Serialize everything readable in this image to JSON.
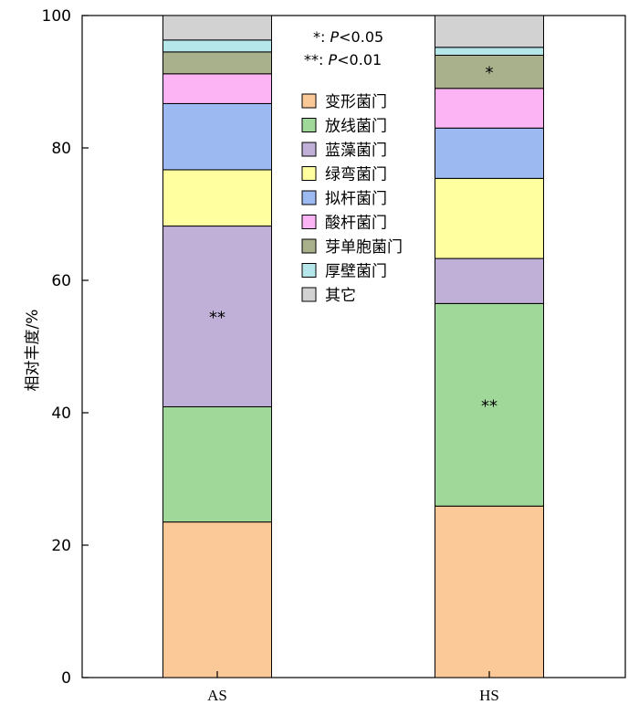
{
  "chart_data": {
    "type": "bar",
    "stacked": true,
    "categories": [
      "AS",
      "HS"
    ],
    "ylabel": "相对丰度/%",
    "ylim": [
      0,
      100
    ],
    "yticks": [
      0,
      20,
      40,
      60,
      80,
      100
    ],
    "legend_position": "top-center",
    "series": [
      {
        "name": "变形菌门",
        "color": "#FBC897",
        "values": [
          23.5,
          25.9
        ]
      },
      {
        "name": "放线菌门",
        "color": "#A0D89A",
        "values": [
          17.4,
          30.6
        ]
      },
      {
        "name": "蓝藻菌门",
        "color": "#C0AFD6",
        "values": [
          27.3,
          6.8
        ]
      },
      {
        "name": "绿弯菌门",
        "color": "#FFFFA0",
        "values": [
          8.5,
          12.1
        ]
      },
      {
        "name": "拟杆菌门",
        "color": "#9DB9F2",
        "values": [
          10.0,
          7.6
        ]
      },
      {
        "name": "酸杆菌门",
        "color": "#FCB4F4",
        "values": [
          4.5,
          6.0
        ]
      },
      {
        "name": "芽单胞菌门",
        "color": "#A8B08C",
        "values": [
          3.3,
          5.0
        ]
      },
      {
        "name": "厚壁菌门",
        "color": "#B4E6EA",
        "values": [
          1.8,
          1.2
        ]
      },
      {
        "name": "其它",
        "color": "#D2D2D2",
        "values": [
          3.7,
          4.8
        ]
      }
    ],
    "significance": [
      {
        "category": "AS",
        "series": "蓝藻菌门",
        "label": "**"
      },
      {
        "category": "HS",
        "series": "放线菌门",
        "label": "**"
      },
      {
        "category": "HS",
        "series": "芽单胞菌门",
        "label": "*"
      }
    ],
    "notes": [
      {
        "marker": "*: ",
        "p": "P",
        "rest": "<0.05"
      },
      {
        "marker": "**: ",
        "p": "P",
        "rest": "<0.01"
      }
    ]
  }
}
